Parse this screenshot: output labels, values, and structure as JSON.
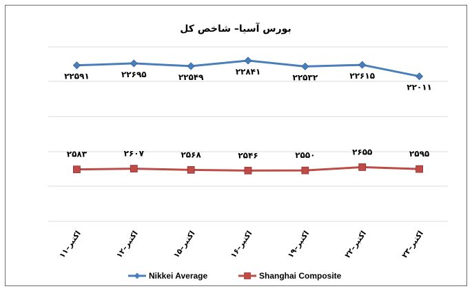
{
  "chart_data": {
    "type": "line",
    "title": "بورس آسیا– شاخص کل",
    "categories": [
      "۱۱–اکتبر",
      "۱۲–اکتبر",
      "۱۵–اکتبر",
      "۱۶–اکتبر",
      "۱۹–اکتبر",
      "۲۲–اکتبر",
      "۲۳–اکتبر"
    ],
    "series": [
      {
        "name": "Nikkei Average",
        "color": "#4a7ebb",
        "marker": "diamond",
        "values": [
          22591,
          22695,
          22549,
          22841,
          22532,
          22615,
          22011
        ],
        "labels": [
          "۲۲۵۹۱",
          "۲۲۶۹۵",
          "۲۲۵۴۹",
          "۲۲۸۴۱",
          "۲۲۵۳۲",
          "۲۲۶۱۵",
          "۲۲۰۱۱"
        ]
      },
      {
        "name": "Shanghai Composite",
        "color": "#be4b48",
        "marker": "square",
        "values": [
          2583,
          2607,
          2568,
          2546,
          2550,
          2655,
          2595
        ],
        "labels": [
          "۲۵۸۳",
          "۲۶۰۷",
          "۲۵۶۸",
          "۲۵۴۶",
          "۲۵۵۰",
          "۲۶۵۵",
          "۲۵۹۵"
        ]
      }
    ],
    "xlabel": "",
    "ylabel": "",
    "y_axis_visible": false,
    "grid": "horizontal",
    "legend_position": "bottom"
  }
}
